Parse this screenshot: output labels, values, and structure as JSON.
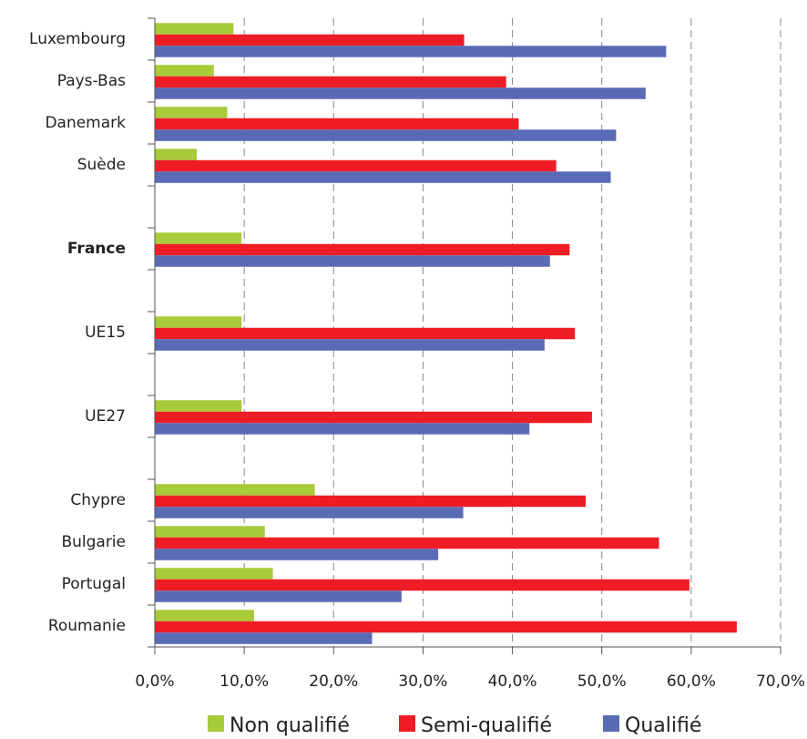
{
  "chart_data": {
    "type": "hbar",
    "categories": [
      "Luxembourg",
      "Pays-Bas",
      "Danemark",
      "Suède",
      null,
      "France",
      null,
      "UE15",
      null,
      "UE27",
      null,
      "Chypre",
      "Bulgarie",
      "Portugal",
      "Roumanie"
    ],
    "series": [
      {
        "name": "Non qualifié",
        "color": "#a8cb3a",
        "values": [
          8.8,
          6.6,
          8.1,
          4.7,
          null,
          9.7,
          null,
          9.7,
          null,
          9.7,
          null,
          17.9,
          12.3,
          13.2,
          11.1
        ]
      },
      {
        "name": "Semi-qualifié",
        "color": "#ee1c25",
        "values": [
          34.6,
          39.3,
          40.7,
          44.9,
          null,
          46.4,
          null,
          47.0,
          null,
          48.9,
          null,
          48.2,
          56.4,
          59.8,
          65.1
        ]
      },
      {
        "name": "Qualifié",
        "color": "#5a6bb5",
        "values": [
          57.2,
          54.9,
          51.6,
          51.0,
          null,
          44.2,
          null,
          43.6,
          null,
          41.9,
          null,
          34.5,
          31.7,
          27.6,
          24.3
        ]
      }
    ],
    "xlim": [
      0,
      70
    ],
    "xticks": [
      {
        "value": 0,
        "label": "0,0%"
      },
      {
        "value": 10,
        "label": "10,0%"
      },
      {
        "value": 20,
        "label": "20,0%"
      },
      {
        "value": 30,
        "label": "30,0%"
      },
      {
        "value": 40,
        "label": "40,0%"
      },
      {
        "value": 50,
        "label": "50,0%"
      },
      {
        "value": 60,
        "label": "60,0%"
      },
      {
        "value": 70,
        "label": "70,0%"
      }
    ],
    "grid": true,
    "legend": "bottom",
    "highlight": {
      "category": "France",
      "color": "#e8202a"
    }
  }
}
